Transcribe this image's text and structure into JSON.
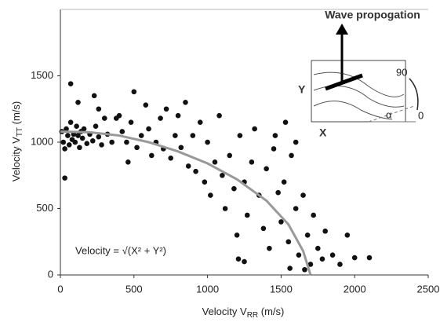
{
  "chart_data": {
    "type": "scatter",
    "xlabel": [
      "Velocity V",
      "RR",
      " (m/s)"
    ],
    "ylabel": [
      "Velocity V",
      "TT",
      " (m/s)"
    ],
    "formula": "Velocity = √(X² + Y²)",
    "inset": {
      "title": "Wave propogation",
      "x": "X",
      "y": "Y",
      "angle_high": "90",
      "angle_low": "0",
      "angle": "α"
    },
    "xlim": [
      0,
      2500
    ],
    "xticks": [
      0,
      500,
      1000,
      1500,
      2000,
      2500
    ],
    "ylim": [
      0,
      2000
    ],
    "yticks": [
      0,
      500,
      1000,
      1500
    ],
    "series": [
      {
        "type": "scatter",
        "color": "#111111",
        "x": [
          10,
          20,
          30,
          40,
          50,
          60,
          70,
          80,
          90,
          100,
          110,
          120,
          130,
          140,
          150,
          160,
          180,
          200,
          220,
          240,
          260,
          280,
          300,
          320,
          30,
          70,
          120,
          230,
          260,
          400,
          420,
          450,
          480,
          500,
          520,
          550,
          580,
          600,
          620,
          650,
          680,
          700,
          720,
          750,
          780,
          800,
          820,
          850,
          870,
          900,
          920,
          950,
          980,
          380,
          350,
          460,
          1000,
          1020,
          1050,
          1080,
          1100,
          1120,
          1150,
          1180,
          1200,
          1220,
          1250,
          1270,
          1300,
          1320,
          1350,
          1380,
          1400,
          1420,
          1250,
          1210,
          1450,
          1480,
          1500,
          1520,
          1550,
          1570,
          1600,
          1620,
          1650,
          1680,
          1700,
          1720,
          1750,
          1780,
          1800,
          1850,
          1900,
          1950,
          2000,
          2100,
          1600,
          1530,
          1460,
          1560,
          1660
        ],
        "values": [
          1080,
          1000,
          950,
          1100,
          1050,
          980,
          1150,
          1020,
          1060,
          1000,
          1120,
          1050,
          960,
          1080,
          1030,
          1100,
          990,
          1060,
          1010,
          1120,
          1040,
          980,
          1180,
          1060,
          730,
          1440,
          1300,
          1350,
          1250,
          1200,
          1080,
          1000,
          1150,
          1380,
          960,
          1050,
          1280,
          1100,
          900,
          1000,
          1180,
          950,
          1250,
          880,
          1050,
          1200,
          960,
          1300,
          820,
          1050,
          780,
          1150,
          700,
          1180,
          1000,
          850,
          1000,
          600,
          850,
          1200,
          750,
          500,
          900,
          650,
          300,
          1050,
          700,
          450,
          850,
          1100,
          600,
          350,
          800,
          200,
          100,
          120,
          950,
          620,
          400,
          700,
          250,
          900,
          500,
          150,
          600,
          300,
          80,
          450,
          200,
          120,
          330,
          150,
          80,
          300,
          130,
          130,
          1000,
          1150,
          1050,
          50,
          40
        ]
      },
      {
        "type": "line",
        "color": "#999999",
        "x": [
          0,
          200,
          400,
          600,
          800,
          1000,
          1200,
          1400,
          1550,
          1650,
          1700
        ],
        "values": [
          1080,
          1075,
          1050,
          1000,
          930,
          840,
          720,
          560,
          380,
          180,
          0
        ]
      }
    ]
  }
}
